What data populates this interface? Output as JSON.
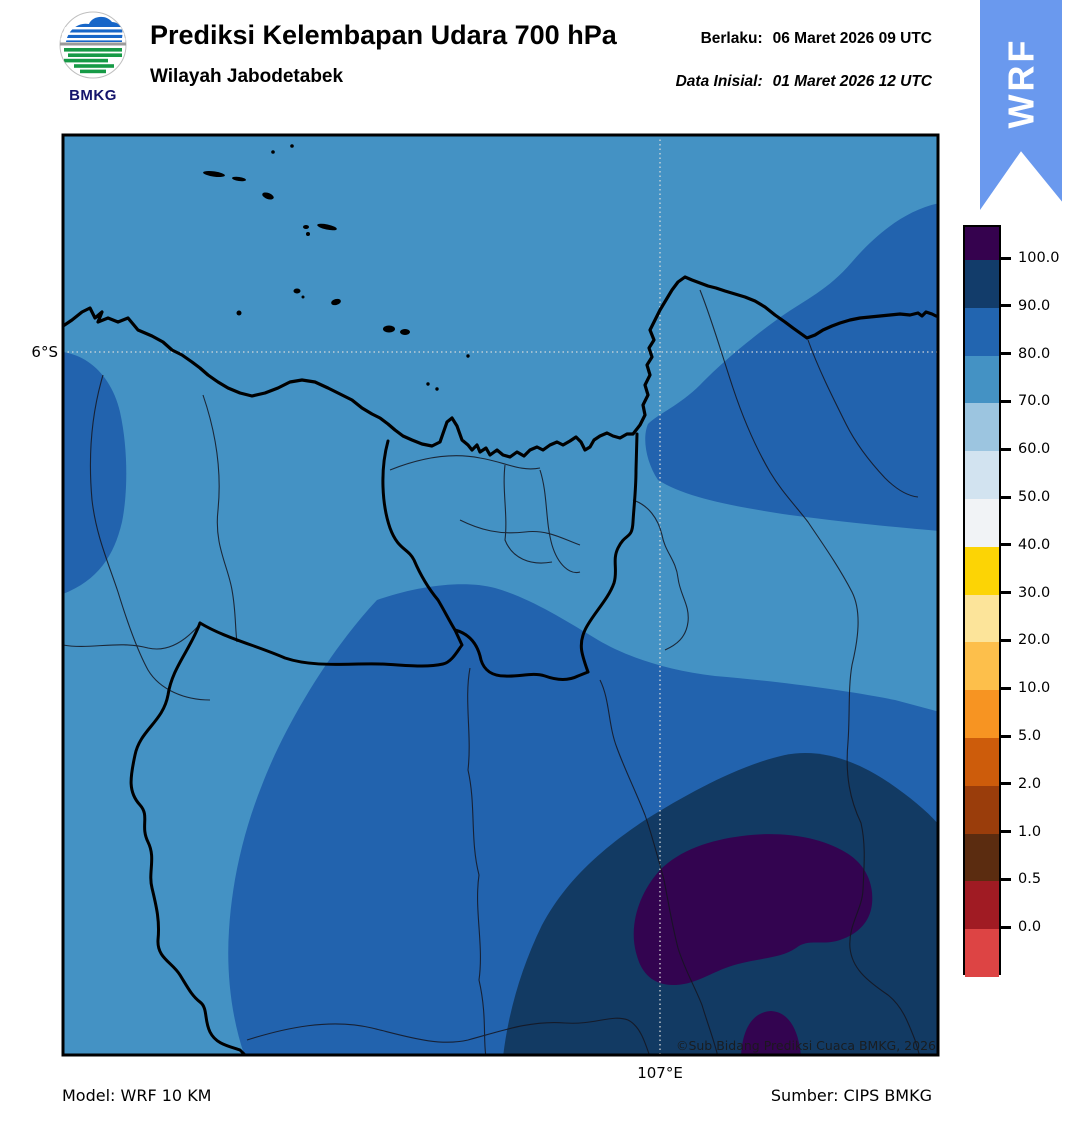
{
  "header": {
    "logo_text": "BMKG",
    "title": "Prediksi Kelembapan Udara 700 hPa",
    "subtitle": "Wilayah Jabodetabek",
    "valid_label": "Berlaku:",
    "valid_value": "06 Maret 2026 09 UTC",
    "init_label": "Data Inisial:",
    "init_value": "01 Maret 2026 12 UTC",
    "ribbon_label": "WRF",
    "ribbon_color": "#6a99ee"
  },
  "map": {
    "lat_label": "6°S",
    "lon_label": "107°E",
    "watermark": "©Sub Bidang Prediksi Cuaca BMKG, 2026",
    "colors": {
      "rh_70_80": "#4492c4",
      "rh_80_90": "#2263ae",
      "rh_90_100": "#123a63",
      "rh_over_100": "#330450",
      "gridline": "#dcdcdc"
    }
  },
  "colorbar": {
    "tick_labels": [
      "100.0",
      "90.0",
      "80.0",
      "70.0",
      "60.0",
      "50.0",
      "40.0",
      "30.0",
      "20.0",
      "10.0",
      "5.0",
      "2.0",
      "1.0",
      "0.5",
      "0.0"
    ],
    "segment_colors": [
      "#35024e",
      "#123c6a",
      "#2265b0",
      "#4492c4",
      "#9cc5e0",
      "#d2e3f0",
      "#f1f3f6",
      "#fcd405",
      "#fce49a",
      "#fdbf4b",
      "#f79422",
      "#cd5c0b",
      "#9a3d0b",
      "#5b2c10",
      "#a01b23",
      "#dd4444"
    ]
  },
  "footer": {
    "model": "Model: WRF 10 KM",
    "source": "Sumber: CIPS BMKG"
  },
  "chart_data": {
    "type": "heatmap",
    "title": "Prediksi Kelembapan Udara 700 hPa",
    "subtitle": "Wilayah Jabodetabek",
    "valid_time": "06 Maret 2026 09 UTC",
    "initial_time": "01 Maret 2026 12 UTC",
    "levels": [
      0.0,
      0.5,
      1.0,
      2.0,
      5.0,
      10.0,
      20.0,
      30.0,
      40.0,
      50.0,
      60.0,
      70.0,
      80.0,
      90.0,
      100.0
    ],
    "gridlines": {
      "latitude": "6°S",
      "longitude": "107°E"
    },
    "regions_visible": [
      {
        "value_range": "70-80",
        "color": "#4492c4",
        "coverage": "most of map (background)"
      },
      {
        "value_range": "80-90",
        "color": "#2263ab",
        "coverage": "left-edge blob, upper-right sea area, large bottom region"
      },
      {
        "value_range": "90-100",
        "color": "#123a63",
        "coverage": "large bottom-right lobe"
      },
      {
        "value_range": "100",
        "color": "#330450",
        "coverage": "kidney-shaped blob bottom-right and small dome at bottom edge"
      }
    ],
    "legend_position": "right"
  }
}
